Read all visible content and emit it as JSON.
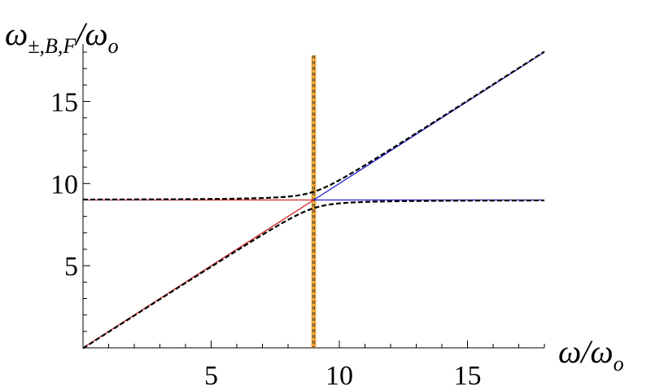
{
  "chart_data": {
    "type": "line",
    "xlabel": "ω/ω",
    "xlabel_sub": "o",
    "ylabel": "ω",
    "ylabel_sub_1": "±,B,F",
    "ylabel_mid": "/ω",
    "ylabel_sub_2": "o",
    "xlim": [
      0,
      18
    ],
    "ylim": [
      0,
      18
    ],
    "x_ticks": [
      5,
      10,
      15
    ],
    "y_ticks": [
      5,
      10,
      15
    ],
    "grid": false,
    "resonance": 9,
    "coupling": 0.5,
    "series": [
      {
        "style": "red-solid",
        "color": "#d62728",
        "points": [
          [
            0,
            0
          ],
          [
            9,
            9
          ]
        ]
      },
      {
        "style": "red-solid",
        "color": "#d62728",
        "points": [
          [
            0,
            9
          ],
          [
            9,
            9
          ]
        ]
      },
      {
        "style": "blue-solid",
        "color": "#2020d0",
        "points": [
          [
            9,
            9
          ],
          [
            18,
            18
          ]
        ]
      },
      {
        "style": "blue-solid",
        "color": "#2020d0",
        "points": [
          [
            9,
            9
          ],
          [
            18,
            9
          ]
        ]
      },
      {
        "style": "black-dashed-upper",
        "color": "#000000"
      },
      {
        "style": "black-dashed-lower",
        "color": "#000000"
      }
    ],
    "vertical_band": {
      "x": [
        8.97,
        9.03
      ],
      "color": "#f0a020"
    }
  }
}
